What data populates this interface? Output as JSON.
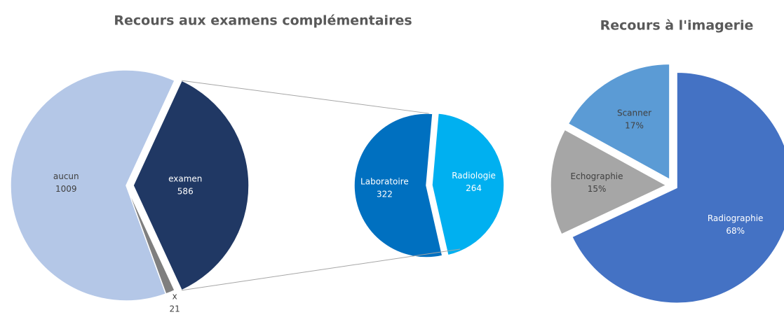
{
  "chart_data": [
    {
      "type": "pieofpie",
      "title": "Recours aux examens complémentaires",
      "categories": [
        "aucun",
        "examen",
        "x"
      ],
      "values": [
        1009,
        586,
        21
      ],
      "colors": [
        "#b4c7e7",
        "#203864",
        "#7f7f7f"
      ],
      "breakdown": {
        "categories": [
          "Radiologie",
          "Laboratoire"
        ],
        "values": [
          264,
          322
        ],
        "colors": [
          "#00b0f0",
          "#0070c0"
        ]
      }
    },
    {
      "type": "pie",
      "title": "Recours à l'imagerie",
      "categories": [
        "Radiographie",
        "Echographie",
        "Scanner"
      ],
      "values": [
        68,
        15,
        17
      ],
      "value_labels": [
        "68%",
        "15%",
        "17%"
      ],
      "colors": [
        "#4472c4",
        "#a6a6a6",
        "#5b9bd5"
      ]
    }
  ]
}
